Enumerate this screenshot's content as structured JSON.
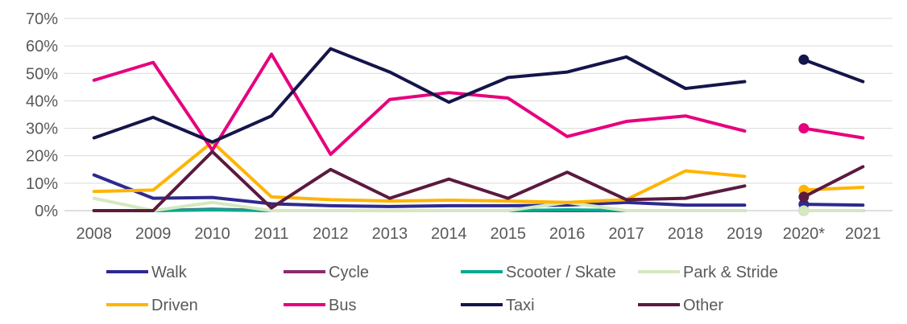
{
  "chart_data": {
    "type": "line",
    "title": "",
    "xlabel": "",
    "ylabel": "",
    "ylim": [
      0,
      70
    ],
    "y_ticks": [
      "0%",
      "10%",
      "20%",
      "30%",
      "40%",
      "50%",
      "60%",
      "70%"
    ],
    "categories": [
      "2008",
      "2009",
      "2010",
      "2011",
      "2012",
      "2013",
      "2014",
      "2015",
      "2016",
      "2017",
      "2018",
      "2019",
      "2020*",
      "2021"
    ],
    "grid": "horizontal",
    "legend_position": "bottom",
    "note": "2020* shown as isolated points (no connecting line)",
    "series": [
      {
        "name": "Walk",
        "color": "#2e2a8f",
        "values": [
          13,
          4.5,
          4.8,
          2.5,
          1.8,
          1.5,
          1.8,
          1.8,
          2,
          3,
          2,
          2,
          2.3,
          2
        ]
      },
      {
        "name": "Cycle",
        "color": "#8b2b6f",
        "values": [
          0,
          0,
          0.5,
          0,
          0,
          0,
          0,
          0,
          0,
          0,
          0,
          0,
          0,
          0
        ]
      },
      {
        "name": "Scooter / Skate",
        "color": "#00a98f",
        "values": [
          0,
          0,
          0.3,
          0,
          0,
          0,
          0,
          0,
          0.3,
          0,
          0,
          0,
          0,
          0
        ]
      },
      {
        "name": "Park & Stride",
        "color": "#d5e8c0",
        "values": [
          4.5,
          0,
          3,
          0,
          0,
          0,
          0,
          0,
          3,
          0,
          0,
          0,
          0,
          0
        ]
      },
      {
        "name": "Driven",
        "color": "#ffb400",
        "values": [
          7,
          7.5,
          25,
          5,
          4,
          3.5,
          3.8,
          3.5,
          3,
          4,
          14.5,
          12.5,
          7.5,
          8.5
        ]
      },
      {
        "name": "Bus",
        "color": "#e6007e",
        "values": [
          47.5,
          54,
          22,
          57,
          20.5,
          40.5,
          43,
          41,
          27,
          32.5,
          34.5,
          29,
          30,
          26.5
        ]
      },
      {
        "name": "Taxi",
        "color": "#14154a",
        "values": [
          26.5,
          34,
          25,
          34.5,
          59,
          50.5,
          39.5,
          48.5,
          50.5,
          56,
          44.5,
          47,
          55,
          47
        ]
      },
      {
        "name": "Other",
        "color": "#5b1a3e",
        "values": [
          0,
          0,
          21.5,
          1,
          15,
          4.5,
          11.5,
          4.5,
          14,
          4,
          4.5,
          9,
          5,
          16
        ]
      }
    ]
  }
}
